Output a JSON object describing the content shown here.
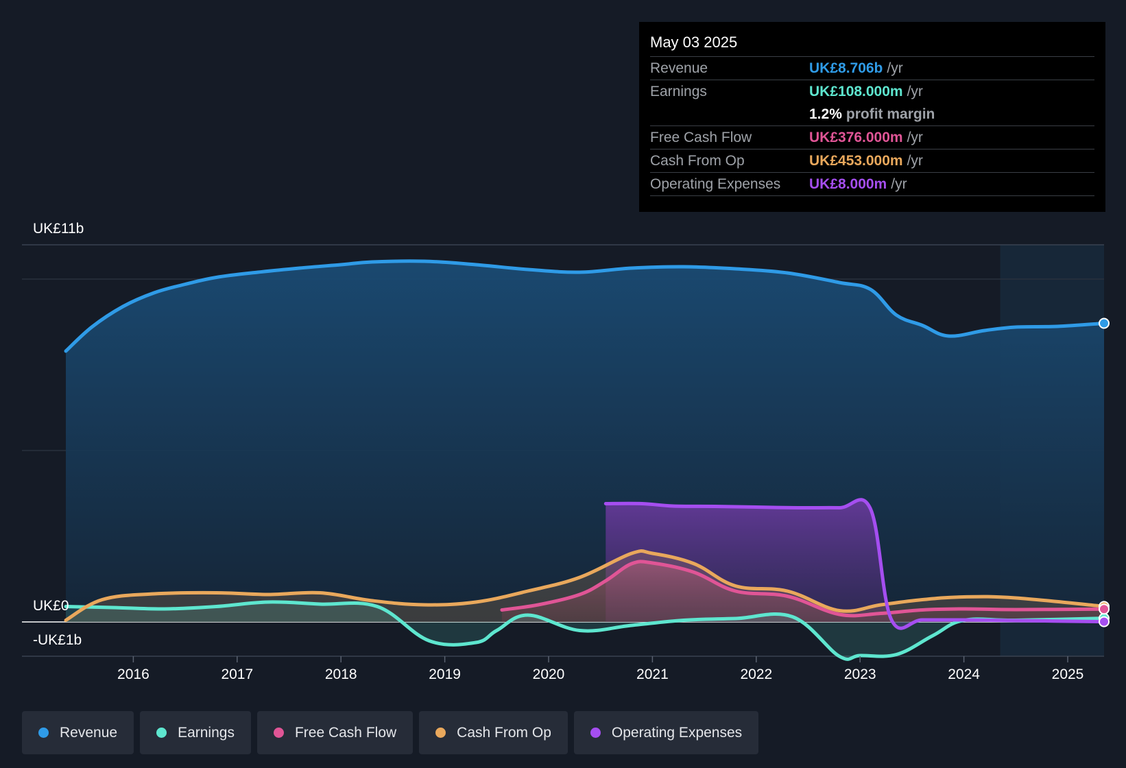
{
  "tooltip": {
    "date": "May 03 2025",
    "rows": [
      {
        "label": "Revenue",
        "value": "UK£8.706b",
        "unit": "/yr",
        "color": "#2f9be7"
      },
      {
        "label": "Earnings",
        "value": "UK£108.000m",
        "unit": "/yr",
        "color": "#5ee6cf"
      },
      {
        "label": "",
        "value": "1.2%",
        "unit": "profit margin",
        "color": "#ffffff"
      },
      {
        "label": "Free Cash Flow",
        "value": "UK£376.000m",
        "unit": "/yr",
        "color": "#e05596"
      },
      {
        "label": "Cash From Op",
        "value": "UK£453.000m",
        "unit": "/yr",
        "color": "#e9a85c"
      },
      {
        "label": "Operating Expenses",
        "value": "UK£8.000m",
        "unit": "/yr",
        "color": "#a54ef0"
      }
    ]
  },
  "legend": [
    {
      "label": "Revenue",
      "color": "#2f9be7"
    },
    {
      "label": "Earnings",
      "color": "#5ee6cf"
    },
    {
      "label": "Free Cash Flow",
      "color": "#e05596"
    },
    {
      "label": "Cash From Op",
      "color": "#e9a85c"
    },
    {
      "label": "Operating Expenses",
      "color": "#a54ef0"
    }
  ],
  "chart_data": {
    "type": "area",
    "title": "",
    "ylabel_top": "UK£11b",
    "ylabel_zero": "UK£0",
    "ylabel_bottom": "-UK£1b",
    "ylim": [
      -1,
      11
    ],
    "xlim": [
      2015.35,
      2025.35
    ],
    "forecast_start": 2024.35,
    "x_ticks": [
      2016,
      2017,
      2018,
      2019,
      2020,
      2021,
      2022,
      2023,
      2024,
      2025
    ],
    "x_tick_labels": [
      "2016",
      "2017",
      "2018",
      "2019",
      "2020",
      "2021",
      "2022",
      "2023",
      "2024",
      "2025"
    ],
    "series": [
      {
        "name": "Revenue",
        "color": "#2f9be7",
        "x": [
          2015.35,
          2015.6,
          2015.9,
          2016.2,
          2016.5,
          2016.8,
          2017.2,
          2017.6,
          2018.0,
          2018.3,
          2018.8,
          2019.3,
          2019.8,
          2020.3,
          2020.8,
          2021.3,
          2021.8,
          2022.3,
          2022.8,
          2023.1,
          2023.35,
          2023.6,
          2023.85,
          2024.2,
          2024.5,
          2024.9,
          2025.35
        ],
        "y": [
          7.9,
          8.6,
          9.2,
          9.6,
          9.85,
          10.05,
          10.2,
          10.32,
          10.42,
          10.5,
          10.52,
          10.42,
          10.28,
          10.2,
          10.32,
          10.36,
          10.3,
          10.18,
          9.9,
          9.7,
          8.95,
          8.65,
          8.34,
          8.5,
          8.6,
          8.62,
          8.71
        ]
      },
      {
        "name": "Earnings",
        "color": "#5ee6cf",
        "x": [
          2015.35,
          2015.8,
          2016.3,
          2016.8,
          2017.3,
          2017.8,
          2018.35,
          2018.85,
          2019.3,
          2019.5,
          2019.8,
          2020.3,
          2020.8,
          2021.3,
          2021.8,
          2022.35,
          2022.8,
          2023.0,
          2023.35,
          2023.7,
          2024.0,
          2024.5,
          2025.35
        ],
        "y": [
          0.45,
          0.42,
          0.38,
          0.45,
          0.58,
          0.52,
          0.45,
          -0.55,
          -0.6,
          -0.25,
          0.2,
          -0.25,
          -0.1,
          0.05,
          0.1,
          0.15,
          -1.0,
          -0.98,
          -0.95,
          -0.4,
          0.05,
          0.05,
          0.108
        ]
      },
      {
        "name": "Free Cash Flow",
        "color": "#e05596",
        "x": [
          2019.55,
          2019.9,
          2020.3,
          2020.55,
          2020.8,
          2021.0,
          2021.4,
          2021.8,
          2022.3,
          2022.8,
          2023.2,
          2023.6,
          2024.0,
          2024.5,
          2025.35
        ],
        "y": [
          0.35,
          0.5,
          0.8,
          1.2,
          1.7,
          1.72,
          1.45,
          0.9,
          0.75,
          0.22,
          0.25,
          0.35,
          0.38,
          0.36,
          0.376
        ]
      },
      {
        "name": "Cash From Op",
        "color": "#e9a85c",
        "x": [
          2015.35,
          2015.7,
          2016.2,
          2016.8,
          2017.3,
          2017.8,
          2018.3,
          2018.8,
          2019.3,
          2019.8,
          2020.3,
          2020.8,
          2021.0,
          2021.4,
          2021.8,
          2022.3,
          2022.8,
          2023.2,
          2023.6,
          2024.0,
          2024.5,
          2025.35
        ],
        "y": [
          0.05,
          0.65,
          0.82,
          0.85,
          0.8,
          0.85,
          0.62,
          0.5,
          0.58,
          0.9,
          1.3,
          2.0,
          2.0,
          1.7,
          1.05,
          0.9,
          0.33,
          0.5,
          0.65,
          0.73,
          0.7,
          0.453
        ]
      },
      {
        "name": "Operating Expenses",
        "color": "#a54ef0",
        "x": [
          2020.55,
          2020.9,
          2021.2,
          2021.6,
          2022.0,
          2022.4,
          2022.8,
          2023.1,
          2023.3,
          2023.6,
          2024.0,
          2024.5,
          2025.35
        ],
        "y": [
          3.45,
          3.45,
          3.38,
          3.37,
          3.35,
          3.33,
          3.33,
          3.3,
          0.08,
          0.06,
          0.06,
          0.04,
          0.008
        ]
      }
    ]
  }
}
